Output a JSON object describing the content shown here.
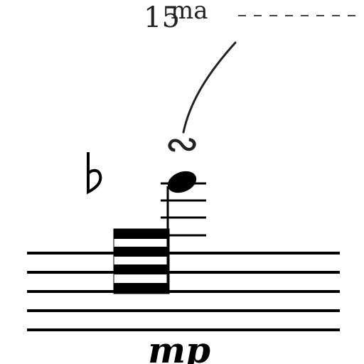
{
  "ottava": {
    "number": "15",
    "suffix": "ma"
  },
  "accidental": {
    "glyph": "♭",
    "icon": "flat-icon"
  },
  "ornament": {
    "glyph": "∾",
    "icon": "turn-icon"
  },
  "dynamic": {
    "text": "mp"
  },
  "colors": {
    "ink": "#000000",
    "background": "#ffffff"
  }
}
